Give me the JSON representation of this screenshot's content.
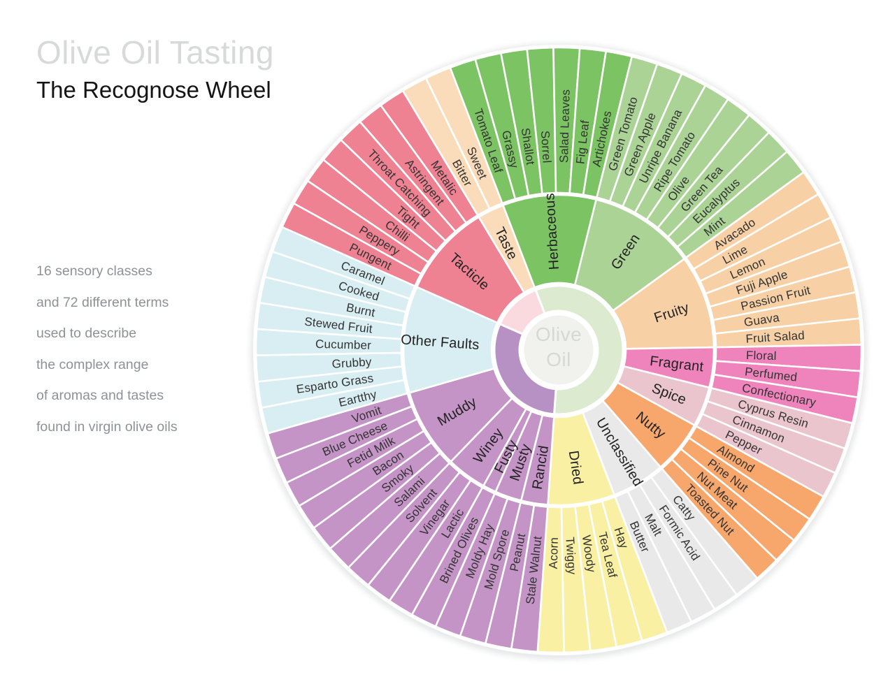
{
  "page": {
    "title": "Olive Oil Tasting",
    "subtitle": "The Recognose Wheel",
    "description_lines": [
      "16 sensory classes",
      "and 72 different terms",
      "used to describe",
      "the complex range",
      "of aromas and tastes",
      "found in virgin olive oils"
    ]
  },
  "chart_data": {
    "type": "sunburst",
    "title": "Olive Oil Tasting - The Recognose Wheel",
    "center_label": {
      "line1": "Olive",
      "line2": "Oil"
    },
    "start_angle_deg": -31,
    "degrees_per_term": 5,
    "classes": [
      {
        "name": "Taste",
        "color": "#fbdcba",
        "terms": [
          "Bitter",
          "Sweet"
        ]
      },
      {
        "name": "Herbaceous",
        "color": "#7cc363",
        "label_flip": true,
        "terms": [
          "Tomato Leaf",
          "Grassy",
          "Shallot",
          "Sorrel",
          "Salad Leaves",
          "Fig Leaf",
          "Artichokes"
        ]
      },
      {
        "name": "Green",
        "color": "#aad395",
        "terms": [
          "Green Tomato",
          "Green Apple",
          "Unripe Banana",
          "Ripe Tomato",
          "Olive",
          "Green Tea",
          "Eucalyptus",
          "Mint"
        ]
      },
      {
        "name": "Fruity",
        "color": "#f8d0a5",
        "terms": [
          "Avacado",
          "Lime",
          "Lemon",
          "Fuji Apple",
          "Passion Fruit",
          "Guava",
          "Fruit Salad"
        ]
      },
      {
        "name": "Fragrant",
        "color": "#ef83bc",
        "terms": [
          "Floral",
          "Perfumed",
          "Confectionary"
        ]
      },
      {
        "name": "Spice",
        "color": "#eac5ce",
        "terms": [
          "Cyprus Resin",
          "Cinnamon",
          "Pepper"
        ]
      },
      {
        "name": "Nutty",
        "color": "#f8a76c",
        "terms": [
          "Almond",
          "Pine Nut",
          "Nut Meat",
          "Toasted Nut"
        ]
      },
      {
        "name": "Unclassified",
        "color": "#e9e9e9",
        "terms": [
          "Catty",
          "Formic Acid",
          "Malt",
          "Butter"
        ]
      },
      {
        "name": "Dried",
        "color": "#f9f0a4",
        "terms": [
          "Hay",
          "Tea Leaf",
          "Woody",
          "Twiggy",
          "Acorn"
        ]
      },
      {
        "name": "Rancid",
        "color": "#c494c6",
        "terms": [
          "Stale Walnut",
          "Peanut"
        ]
      },
      {
        "name": "Musty",
        "color": "#c494c6",
        "terms": [
          "Mold Spore",
          "Moldy Hay"
        ]
      },
      {
        "name": "Fusty",
        "color": "#c494c6",
        "terms": [
          "Brined Olives"
        ]
      },
      {
        "name": "Winey",
        "color": "#c494c6",
        "terms": [
          "Lactic",
          "Vinegar",
          "Solvent"
        ]
      },
      {
        "name": "Muddy",
        "color": "#c494c6",
        "terms": [
          "Salami",
          "Smoky",
          "Bacon",
          "Fetid Milk",
          "Blue Cheese",
          "Vomit"
        ]
      },
      {
        "name": "Other Faults",
        "color": "#d8eef3",
        "terms": [
          "Eartthy",
          "Esparto Grass",
          "Grubby",
          "Cucumber",
          "Stewed Fruit",
          "Burnt",
          "Cooked",
          "Caramel"
        ]
      },
      {
        "name": "Tacticle",
        "color": "#ee8292",
        "terms": [
          "Pungent",
          "Peppery",
          "Chilli",
          "Tight",
          "Throat Catching",
          "Astringent",
          "Metalic"
        ]
      }
    ],
    "inner_arcs": [
      {
        "name": "positive-attributes-arc",
        "color": "#dcead0",
        "classes": [
          "Herbaceous",
          "Green",
          "Fruity",
          "Fragrant",
          "Spice",
          "Nutty",
          "Unclassified",
          "Dried"
        ]
      },
      {
        "name": "defects-arc",
        "color": "#b891c4",
        "classes": [
          "Rancid",
          "Musty",
          "Fusty",
          "Winey",
          "Muddy",
          "Other Faults"
        ]
      },
      {
        "name": "mouthfeel-arc",
        "color": "#fad9df",
        "classes": [
          "Tacticle",
          "Taste"
        ]
      }
    ],
    "colors": {
      "center_fill": "#f1f2ee",
      "center_text": "#d6d9d2",
      "separator": "#ffffff"
    }
  }
}
